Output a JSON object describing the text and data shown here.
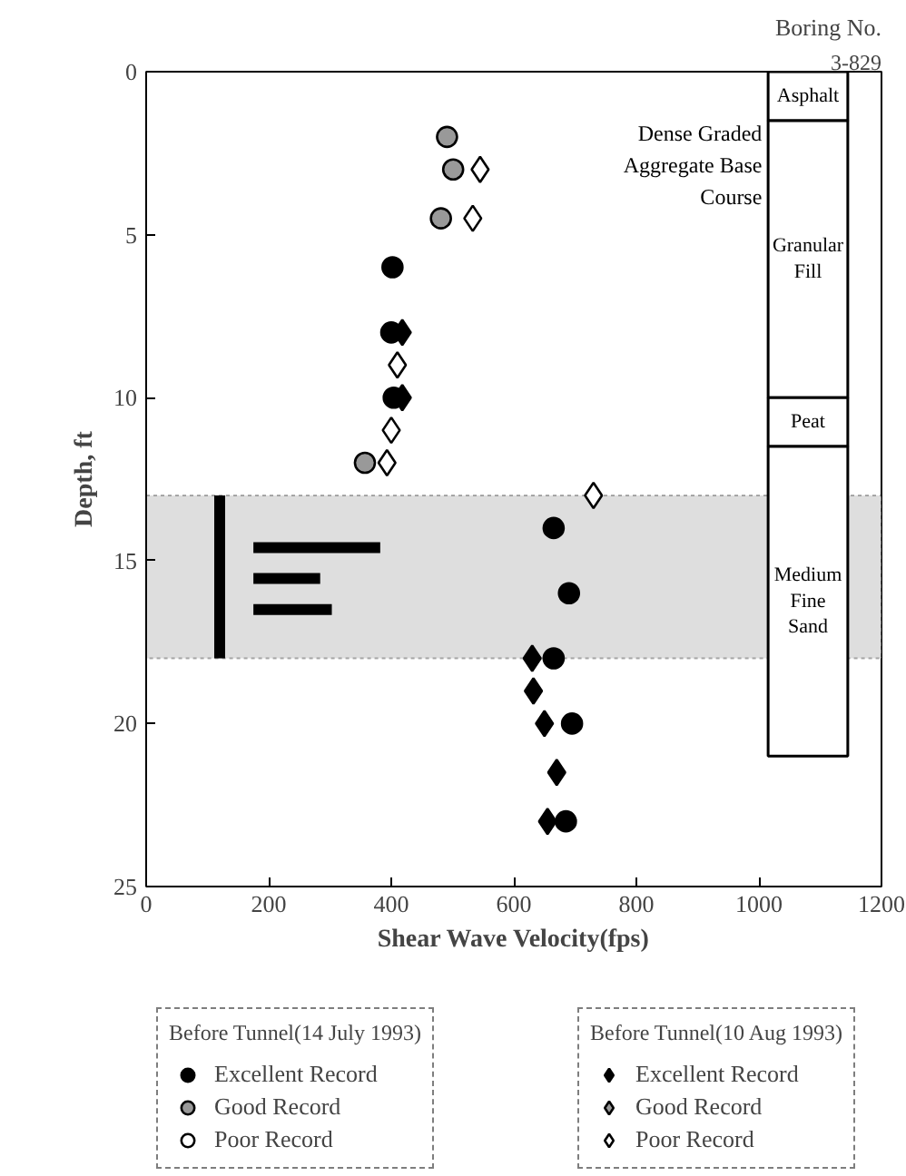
{
  "chart_data": {
    "type": "scatter",
    "title": "Boring No.",
    "subtitle": "3-829",
    "xlabel": "Shear Wave Velocity(fps)",
    "ylabel": "Depth, ft",
    "xlim": [
      0,
      1200
    ],
    "xticks": [
      0,
      200,
      400,
      600,
      800,
      1000,
      1200
    ],
    "ylim": [
      25,
      0
    ],
    "yticks": [
      0,
      5,
      10,
      15,
      20,
      25
    ],
    "grid": false,
    "legend": "bottom",
    "stacked": true,
    "legend_title": [
      "Before Tunnel(14 July 1993)",
      "Before Tunnel(10 Aug 1993)"
    ],
    "bands": [
      {
        "axis": "y",
        "from": 13,
        "to": 18,
        "color": "#c8c8c8"
      }
    ],
    "annotations": [
      "Asphalt",
      "Granular\nFill",
      "Peat",
      "Medium\nFine\nSand",
      "Dense Graded\nAggregate Base\nCourse"
    ],
    "series": [
      {
        "name": "Excellent Record",
        "marker": "circle",
        "color": "#000000",
        "x": [
          402,
          400,
          404,
          665,
          690,
          665,
          695,
          685
        ],
        "values": [
          6,
          8,
          10,
          14,
          16,
          18,
          20,
          23
        ]
      },
      {
        "name": "Good Record",
        "marker": "circle",
        "color": "#999999",
        "x": [
          491,
          501,
          481,
          357
        ],
        "values": [
          2,
          3,
          4.5,
          12
        ]
      },
      {
        "name": "Poor Record",
        "marker": "circle",
        "color": "#ffffff"
      },
      {
        "name": "Excellent Record",
        "marker": "diamond",
        "color": "#000000",
        "x": [
          418,
          418,
          630,
          632,
          650,
          670,
          655
        ],
        "values": [
          8,
          10,
          18,
          19,
          20,
          21.5,
          23
        ]
      },
      {
        "name": "Good Record",
        "marker": "diamond",
        "color": "#999999"
      },
      {
        "name": "Poor Record",
        "marker": "diamond",
        "color": "#ffffff",
        "x": [
          545,
          533,
          410,
          400,
          393,
          730
        ],
        "values": [
          3,
          4.5,
          9,
          11,
          12,
          13
        ]
      },
      {
        "type": "line",
        "color": "#000000",
        "x": [
          175,
          382
        ],
        "values": [
          14.6,
          14.6
        ]
      },
      {
        "type": "line",
        "color": "#000000",
        "x": [
          175,
          284
        ],
        "values": [
          15.55,
          15.55
        ]
      },
      {
        "type": "line",
        "color": "#000000",
        "x": [
          175,
          303
        ],
        "values": [
          16.5,
          16.5
        ]
      },
      {
        "type": "line",
        "color": "#000000",
        "x": [
          120,
          120
        ],
        "values": [
          13,
          18
        ]
      },
      {
        "type": "bar",
        "color": "#ffffff",
        "x": [
          1080
        ],
        "values": [
          1.5
        ]
      },
      {
        "type": "bar",
        "color": "#ffffff",
        "x": [
          1080
        ],
        "values": [
          8.5
        ]
      },
      {
        "type": "bar",
        "color": "#ffffff",
        "x": [
          1080
        ],
        "values": [
          1.5
        ]
      },
      {
        "type": "bar",
        "color": "#ffffff",
        "x": [
          1080
        ],
        "values": [
          9.5
        ]
      }
    ]
  }
}
